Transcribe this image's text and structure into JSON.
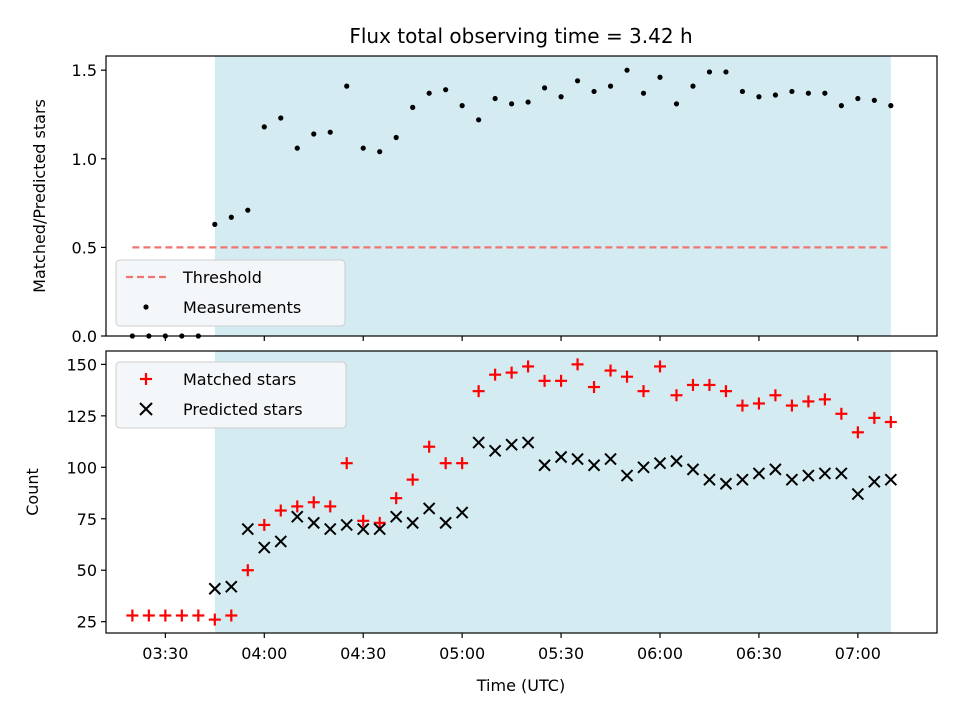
{
  "chart_data": [
    {
      "panel": "top",
      "type": "scatter",
      "title": "Flux total observing time = 3.42 h",
      "ylabel": "Matched/Predicted stars",
      "xlabel": "",
      "xlim": [
        "03:12",
        "07:24"
      ],
      "ylim": [
        0,
        1.58
      ],
      "yticks": [
        0.0,
        0.5,
        1.0,
        1.5
      ],
      "ytick_labels": [
        "0.0",
        "0.5",
        "1.0",
        "1.5"
      ],
      "shaded_region": {
        "x": [
          "03:45",
          "07:10"
        ],
        "color": "#d4ebf1"
      },
      "grid": false,
      "legend": {
        "placement": "lower-left",
        "entries": [
          "Threshold",
          "Measurements"
        ]
      },
      "series": [
        {
          "name": "Threshold",
          "kind": "line",
          "style": "dashed",
          "color": "#f07470",
          "x": [
            "03:20",
            "07:10"
          ],
          "y": [
            0.5,
            0.5
          ]
        },
        {
          "name": "Measurements",
          "kind": "scatter",
          "marker": "dot",
          "color": "#000000",
          "points": [
            [
              "03:20",
              0.0
            ],
            [
              "03:25",
              0.0
            ],
            [
              "03:30",
              0.0
            ],
            [
              "03:35",
              0.0
            ],
            [
              "03:40",
              0.0
            ],
            [
              "03:45",
              0.63
            ],
            [
              "03:50",
              0.67
            ],
            [
              "03:55",
              0.71
            ],
            [
              "04:00",
              1.18
            ],
            [
              "04:05",
              1.23
            ],
            [
              "04:10",
              1.06
            ],
            [
              "04:15",
              1.14
            ],
            [
              "04:20",
              1.15
            ],
            [
              "04:25",
              1.41
            ],
            [
              "04:30",
              1.06
            ],
            [
              "04:35",
              1.04
            ],
            [
              "04:40",
              1.12
            ],
            [
              "04:45",
              1.29
            ],
            [
              "04:50",
              1.37
            ],
            [
              "04:55",
              1.39
            ],
            [
              "05:00",
              1.3
            ],
            [
              "05:05",
              1.22
            ],
            [
              "05:10",
              1.34
            ],
            [
              "05:15",
              1.31
            ],
            [
              "05:20",
              1.32
            ],
            [
              "05:25",
              1.4
            ],
            [
              "05:30",
              1.35
            ],
            [
              "05:35",
              1.44
            ],
            [
              "05:40",
              1.38
            ],
            [
              "05:45",
              1.41
            ],
            [
              "05:50",
              1.5
            ],
            [
              "05:55",
              1.37
            ],
            [
              "06:00",
              1.46
            ],
            [
              "06:05",
              1.31
            ],
            [
              "06:10",
              1.41
            ],
            [
              "06:15",
              1.49
            ],
            [
              "06:20",
              1.49
            ],
            [
              "06:25",
              1.38
            ],
            [
              "06:30",
              1.35
            ],
            [
              "06:35",
              1.36
            ],
            [
              "06:40",
              1.38
            ],
            [
              "06:45",
              1.37
            ],
            [
              "06:50",
              1.37
            ],
            [
              "06:55",
              1.3
            ],
            [
              "07:00",
              1.34
            ],
            [
              "07:05",
              1.33
            ],
            [
              "07:10",
              1.3
            ]
          ]
        }
      ]
    },
    {
      "panel": "bottom",
      "type": "scatter",
      "title": "",
      "ylabel": "Count",
      "xlabel": "Time (UTC)",
      "xlim": [
        "03:12",
        "07:24"
      ],
      "ylim": [
        19.5,
        156.5
      ],
      "yticks": [
        25,
        50,
        75,
        100,
        125,
        150
      ],
      "ytick_labels": [
        "25",
        "50",
        "75",
        "100",
        "125",
        "150"
      ],
      "xticks": [
        "03:30",
        "04:00",
        "04:30",
        "05:00",
        "05:30",
        "06:00",
        "06:30",
        "07:00"
      ],
      "shaded_region": {
        "x": [
          "03:45",
          "07:10"
        ],
        "color": "#d4ebf1"
      },
      "grid": false,
      "legend": {
        "placement": "top-left",
        "entries": [
          "Matched stars",
          "Predicted stars"
        ]
      },
      "series": [
        {
          "name": "Matched stars",
          "kind": "scatter",
          "marker": "plus",
          "color": "#ff0000",
          "points": [
            [
              "03:20",
              28
            ],
            [
              "03:25",
              28
            ],
            [
              "03:30",
              28
            ],
            [
              "03:35",
              28
            ],
            [
              "03:40",
              28
            ],
            [
              "03:45",
              26
            ],
            [
              "03:50",
              28
            ],
            [
              "03:55",
              50
            ],
            [
              "04:00",
              72
            ],
            [
              "04:05",
              79
            ],
            [
              "04:10",
              81
            ],
            [
              "04:15",
              83
            ],
            [
              "04:20",
              81
            ],
            [
              "04:25",
              102
            ],
            [
              "04:30",
              74
            ],
            [
              "04:35",
              73
            ],
            [
              "04:40",
              85
            ],
            [
              "04:45",
              94
            ],
            [
              "04:50",
              110
            ],
            [
              "04:55",
              102
            ],
            [
              "05:00",
              102
            ],
            [
              "05:05",
              137
            ],
            [
              "05:10",
              145
            ],
            [
              "05:15",
              146
            ],
            [
              "05:20",
              149
            ],
            [
              "05:25",
              142
            ],
            [
              "05:30",
              142
            ],
            [
              "05:35",
              150
            ],
            [
              "05:40",
              139
            ],
            [
              "05:45",
              147
            ],
            [
              "05:50",
              144
            ],
            [
              "05:55",
              137
            ],
            [
              "06:00",
              149
            ],
            [
              "06:05",
              135
            ],
            [
              "06:10",
              140
            ],
            [
              "06:15",
              140
            ],
            [
              "06:20",
              137
            ],
            [
              "06:25",
              130
            ],
            [
              "06:30",
              131
            ],
            [
              "06:35",
              135
            ],
            [
              "06:40",
              130
            ],
            [
              "06:45",
              132
            ],
            [
              "06:50",
              133
            ],
            [
              "06:55",
              126
            ],
            [
              "07:00",
              117
            ],
            [
              "07:05",
              124
            ],
            [
              "07:10",
              122
            ]
          ]
        },
        {
          "name": "Predicted stars",
          "kind": "scatter",
          "marker": "x",
          "color": "#000000",
          "points": [
            [
              "03:45",
              41
            ],
            [
              "03:50",
              42
            ],
            [
              "03:55",
              70
            ],
            [
              "04:00",
              61
            ],
            [
              "04:05",
              64
            ],
            [
              "04:10",
              76
            ],
            [
              "04:15",
              73
            ],
            [
              "04:20",
              70
            ],
            [
              "04:25",
              72
            ],
            [
              "04:30",
              70
            ],
            [
              "04:35",
              70
            ],
            [
              "04:40",
              76
            ],
            [
              "04:45",
              73
            ],
            [
              "04:50",
              80
            ],
            [
              "04:55",
              73
            ],
            [
              "05:00",
              78
            ],
            [
              "05:05",
              112
            ],
            [
              "05:10",
              108
            ],
            [
              "05:15",
              111
            ],
            [
              "05:20",
              112
            ],
            [
              "05:25",
              101
            ],
            [
              "05:30",
              105
            ],
            [
              "05:35",
              104
            ],
            [
              "05:40",
              101
            ],
            [
              "05:45",
              104
            ],
            [
              "05:50",
              96
            ],
            [
              "05:55",
              100
            ],
            [
              "06:00",
              102
            ],
            [
              "06:05",
              103
            ],
            [
              "06:10",
              99
            ],
            [
              "06:15",
              94
            ],
            [
              "06:20",
              92
            ],
            [
              "06:25",
              94
            ],
            [
              "06:30",
              97
            ],
            [
              "06:35",
              99
            ],
            [
              "06:40",
              94
            ],
            [
              "06:45",
              96
            ],
            [
              "06:50",
              97
            ],
            [
              "06:55",
              97
            ],
            [
              "07:00",
              87
            ],
            [
              "07:05",
              93
            ],
            [
              "07:10",
              94
            ]
          ]
        }
      ]
    }
  ]
}
